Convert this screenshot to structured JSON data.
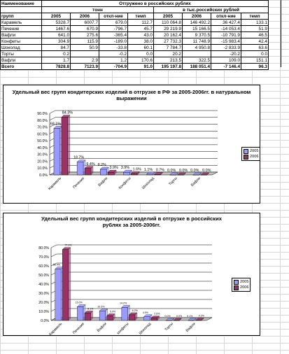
{
  "table": {
    "header1": [
      "Наименование",
      "Отгружено в российских рублях"
    ],
    "header2": [
      "тонн",
      "в тыс.российских рублей"
    ],
    "header3": [
      "групп",
      "2005",
      "2006",
      "откл-ние",
      "темп",
      "2005",
      "2006",
      "откл-ние",
      "темп"
    ],
    "rows": [
      [
        "Карамель",
        "5328.7",
        "6007.7",
        "679.0",
        "112.7",
        "110 064.8",
        "146 492.2",
        "36 427.4",
        "133.1"
      ],
      [
        "Печение",
        "1467.6",
        "670.9",
        "-796.7",
        "45.7",
        "29 219.9",
        "15 166.5",
        "-14 053.4",
        "51.9"
      ],
      [
        "Вафли",
        "641.0",
        "275.6",
        "-365.4",
        "43.0",
        "20 162.4",
        "9 370.5",
        "-10 791.9",
        "46.5"
      ],
      [
        "Конфеты",
        "304.9",
        "115.9",
        "-189.0",
        "38.0",
        "27 732.3",
        "11 748.9",
        "-15 983.4",
        "42.4"
      ],
      [
        "Шоколад",
        "84.7",
        "50.9",
        "-33.8",
        "60.1",
        "7 784.7",
        "4 950.8",
        "-2 833.9",
        "63.6"
      ],
      [
        "Торты",
        "0.2",
        "",
        "-0.2",
        "0.0",
        "20.2",
        "",
        "-20.2",
        "0.0"
      ],
      [
        "Вафли",
        "1.7",
        "2.9",
        "1.2",
        "170.6",
        "213.5",
        "322.5",
        "109.0",
        "151.1"
      ],
      [
        "Всего",
        "7828.8",
        "7123.9",
        "-704.9",
        "91.0",
        "195 197.8",
        "188 051.4",
        "-7 146.4",
        "96.3"
      ]
    ]
  },
  "colors": {
    "series2005": "#9999ff",
    "series2006": "#993366"
  },
  "chart_data": [
    {
      "type": "bar",
      "title": "Удельный вес групп кондитерских изделий в отгрузке в РФ за  2005-2006гг. в натуральном выражении",
      "categories": [
        "Карамель",
        "Печение",
        "Вафли",
        "Конфеты",
        "Шоколад",
        "Торты",
        "Вафли"
      ],
      "series": [
        {
          "name": "2005",
          "values": [
            68.1,
            18.7,
            8.2,
            3.9,
            1.1,
            0.0,
            0.0
          ],
          "labels": [
            "68.1%",
            "18.7%",
            "8.2%",
            "3.9%",
            "1.1%",
            "0.0%",
            "0.0%"
          ]
        },
        {
          "name": "2006",
          "values": [
            84.3,
            9.4,
            3.9,
            1.6,
            0.7,
            0.0,
            0.0
          ],
          "labels": [
            "84.3%",
            "9.4%",
            "3.9%",
            "1.6%",
            "0.7%",
            "0.0%",
            "0.0%"
          ]
        }
      ],
      "yticks": [
        "0.0%",
        "10.0%",
        "20.0%",
        "30.0%",
        "40.0%",
        "50.0%",
        "60.0%",
        "70.0%",
        "80.0%",
        "90.0%"
      ],
      "ylim": [
        0,
        90
      ],
      "grid": true,
      "legend": "right"
    },
    {
      "type": "bar",
      "title": "Удельный вес групп кондитерских изделий в отгрузке в российских рублях за  2005-2006гг.",
      "categories": [
        "Карамель",
        "Печение",
        "Вафли",
        "конфеты",
        "Шоколад",
        "Торты",
        "Вафли"
      ],
      "series": [
        {
          "name": "2005",
          "values": [
            56.4,
            15.0,
            10.3,
            14.2,
            4.0,
            0.0,
            0.1
          ],
          "labels": [
            "56.4%",
            "15.0%",
            "10.3%",
            "14.2%",
            "4.0%",
            "0.0%",
            "0.1%"
          ]
        },
        {
          "name": "2006",
          "values": [
            77.9,
            8.1,
            5.0,
            6.2,
            2.6,
            0.0,
            0.2
          ],
          "labels": [
            "77.9%",
            "8.1%",
            "5.0%",
            "6.2%",
            "2.6%",
            "0.0%",
            "0.2%"
          ]
        }
      ],
      "yticks": [
        "0.0%",
        "10.0%",
        "20.0%",
        "30.0%",
        "40.0%",
        "50.0%",
        "60.0%",
        "70.0%",
        "80.0%"
      ],
      "ylim": [
        0,
        80
      ],
      "grid": true,
      "legend": "right"
    }
  ]
}
